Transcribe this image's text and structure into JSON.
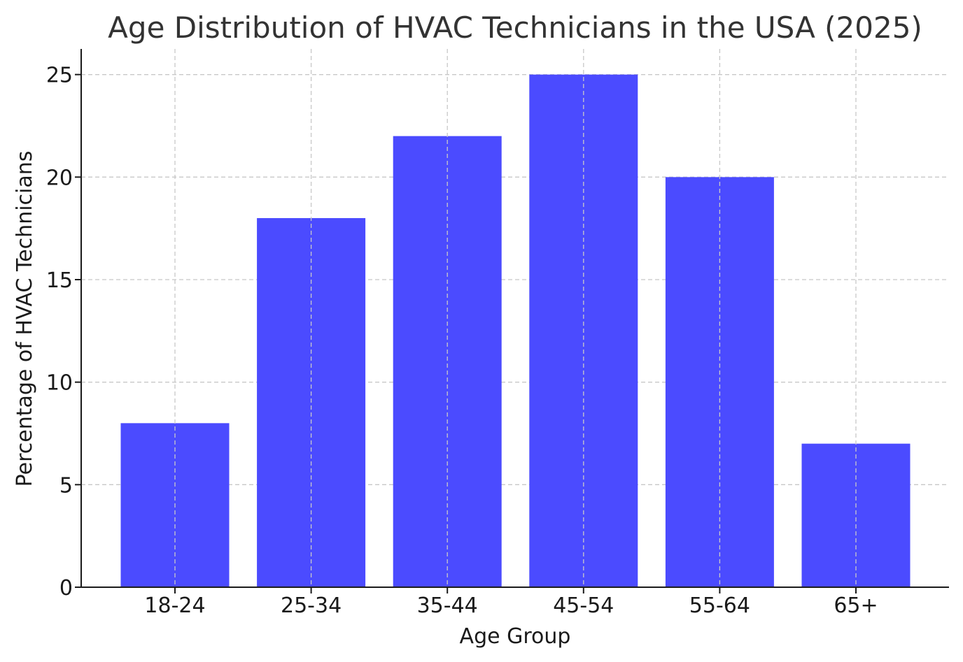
{
  "chart_data": {
    "type": "bar",
    "title": "Age Distribution of HVAC Technicians in the USA (2025)",
    "xlabel": "Age Group",
    "ylabel": "Percentage of HVAC Technicians",
    "categories": [
      "18-24",
      "25-34",
      "35-44",
      "45-54",
      "55-64",
      "65+"
    ],
    "values": [
      8,
      18,
      22,
      25,
      20,
      7
    ],
    "ylim": [
      0,
      26.25
    ],
    "yticks": [
      "0",
      "5",
      "10",
      "15",
      "20",
      "25"
    ],
    "grid": true,
    "bar_color": "#4b4bff"
  }
}
